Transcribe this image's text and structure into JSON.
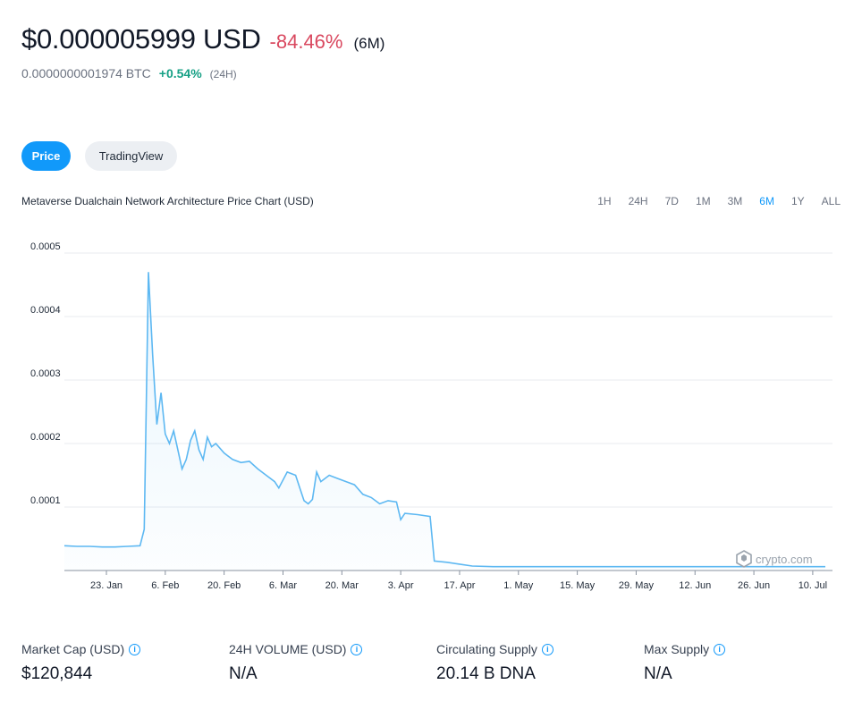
{
  "header": {
    "price": "$0.000005999 USD",
    "change_6m": "-84.46%",
    "period_6m": "(6M)",
    "btc_price": "0.0000000001974 BTC",
    "btc_change": "+0.54%",
    "btc_period": "(24H)"
  },
  "tabs": [
    {
      "label": "Price",
      "active": true
    },
    {
      "label": "TradingView",
      "active": false
    }
  ],
  "chart_title": "Metaverse Dualchain Network Architecture Price Chart (USD)",
  "ranges": [
    "1H",
    "24H",
    "7D",
    "1M",
    "3M",
    "6M",
    "1Y",
    "ALL"
  ],
  "active_range": "6M",
  "watermark": "crypto.com",
  "stats": [
    {
      "label": "Market Cap (USD)",
      "value": "$120,844"
    },
    {
      "label": "24H VOLUME (USD)",
      "value": "N/A"
    },
    {
      "label": "Circulating Supply",
      "value": "20.14 B DNA"
    },
    {
      "label": "Max Supply",
      "value": "N/A"
    }
  ],
  "colors": {
    "accent": "#1199fa",
    "negative": "#d9485f",
    "positive": "#16a085",
    "line": "#5db8f2"
  },
  "chart_data": {
    "type": "area",
    "title": "",
    "y_ticks": [
      "0.0005",
      "0.0004",
      "0.0003",
      "0.0002",
      "0.0001"
    ],
    "x_ticks": [
      "23. Jan",
      "6. Feb",
      "20. Feb",
      "6. Mar",
      "20. Mar",
      "3. Apr",
      "17. Apr",
      "1. May",
      "15. May",
      "29. May",
      "12. Jun",
      "26. Jun",
      "10. Jul"
    ],
    "x_start": "2022-01-13",
    "ylim": [
      0,
      0.0005
    ],
    "grid": true,
    "series": [
      {
        "name": "",
        "points": [
          [
            "2022-01-13",
            3.9e-05
          ],
          [
            "2022-01-16",
            3.8e-05
          ],
          [
            "2022-01-19",
            3.8e-05
          ],
          [
            "2022-01-22",
            3.7e-05
          ],
          [
            "2022-01-25",
            3.7e-05
          ],
          [
            "2022-01-28",
            3.8e-05
          ],
          [
            "2022-01-31",
            3.9e-05
          ],
          [
            "2022-02-01",
            6.5e-05
          ],
          [
            "2022-02-02",
            0.00047
          ],
          [
            "2022-02-03",
            0.00034
          ],
          [
            "2022-02-04",
            0.00023
          ],
          [
            "2022-02-05",
            0.00028
          ],
          [
            "2022-02-06",
            0.000215
          ],
          [
            "2022-02-07",
            0.0002
          ],
          [
            "2022-02-08",
            0.00022
          ],
          [
            "2022-02-09",
            0.00019
          ],
          [
            "2022-02-10",
            0.00016
          ],
          [
            "2022-02-11",
            0.000175
          ],
          [
            "2022-02-12",
            0.000205
          ],
          [
            "2022-02-13",
            0.00022
          ],
          [
            "2022-02-14",
            0.00019
          ],
          [
            "2022-02-15",
            0.000175
          ],
          [
            "2022-02-16",
            0.00021
          ],
          [
            "2022-02-17",
            0.000195
          ],
          [
            "2022-02-18",
            0.0002
          ],
          [
            "2022-02-20",
            0.000185
          ],
          [
            "2022-02-22",
            0.000175
          ],
          [
            "2022-02-24",
            0.00017
          ],
          [
            "2022-02-26",
            0.000172
          ],
          [
            "2022-02-28",
            0.00016
          ],
          [
            "2022-03-02",
            0.00015
          ],
          [
            "2022-03-04",
            0.00014
          ],
          [
            "2022-03-05",
            0.00013
          ],
          [
            "2022-03-07",
            0.000155
          ],
          [
            "2022-03-09",
            0.00015
          ],
          [
            "2022-03-10",
            0.00013
          ],
          [
            "2022-03-11",
            0.00011
          ],
          [
            "2022-03-12",
            0.000105
          ],
          [
            "2022-03-13",
            0.000112
          ],
          [
            "2022-03-14",
            0.000155
          ],
          [
            "2022-03-15",
            0.00014
          ],
          [
            "2022-03-17",
            0.00015
          ],
          [
            "2022-03-19",
            0.000145
          ],
          [
            "2022-03-21",
            0.00014
          ],
          [
            "2022-03-23",
            0.000135
          ],
          [
            "2022-03-25",
            0.00012
          ],
          [
            "2022-03-27",
            0.000115
          ],
          [
            "2022-03-29",
            0.000105
          ],
          [
            "2022-03-31",
            0.00011
          ],
          [
            "2022-04-02",
            0.000108
          ],
          [
            "2022-04-03",
            8e-05
          ],
          [
            "2022-04-04",
            9e-05
          ],
          [
            "2022-04-07",
            8.8e-05
          ],
          [
            "2022-04-10",
            8.5e-05
          ],
          [
            "2022-04-11",
            1.5e-05
          ],
          [
            "2022-04-14",
            1.3e-05
          ],
          [
            "2022-04-17",
            1e-05
          ],
          [
            "2022-04-20",
            7e-06
          ],
          [
            "2022-04-25",
            6e-06
          ],
          [
            "2022-05-10",
            6e-06
          ],
          [
            "2022-06-01",
            6e-06
          ],
          [
            "2022-06-20",
            6e-06
          ],
          [
            "2022-07-13",
            6e-06
          ]
        ]
      }
    ]
  }
}
